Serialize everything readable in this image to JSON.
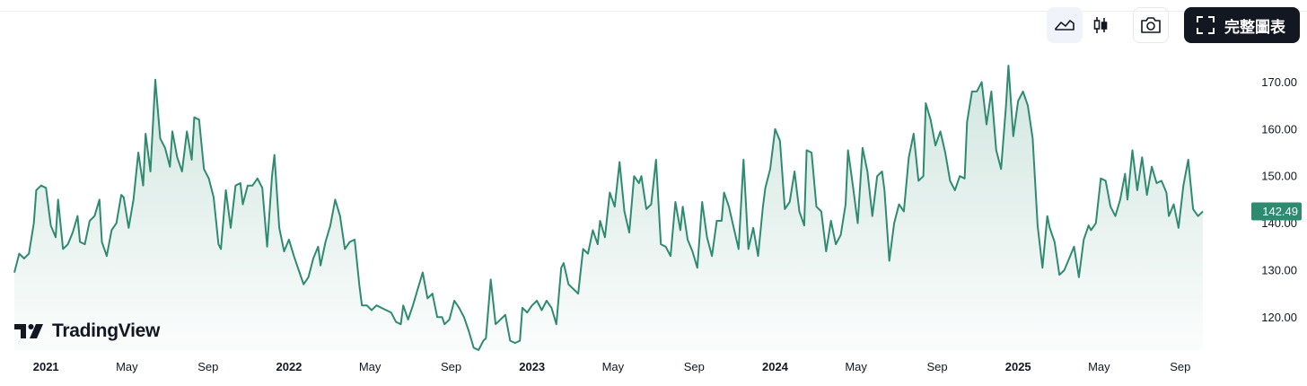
{
  "toolbar": {
    "line_icon": "line-chart-icon",
    "candle_icon": "candlestick-icon",
    "camera_icon": "camera-icon",
    "fullscreen_icon": "fullscreen-icon",
    "fullscreen_label": "完整圖表"
  },
  "brand": {
    "name": "TradingView",
    "logo_icon": "tradingview-logo-icon"
  },
  "colors": {
    "line": "#2e8b6f",
    "fill": "#2e8b6f",
    "label_bg": "#2e8b6f"
  },
  "chart_data": {
    "type": "area",
    "x_ticks": [
      {
        "label": "2021",
        "year": true,
        "x": 2021.0
      },
      {
        "label": "May",
        "year": false,
        "x": 2021.333
      },
      {
        "label": "Sep",
        "year": false,
        "x": 2021.667
      },
      {
        "label": "2022",
        "year": true,
        "x": 2022.0
      },
      {
        "label": "May",
        "year": false,
        "x": 2022.333
      },
      {
        "label": "Sep",
        "year": false,
        "x": 2022.667
      },
      {
        "label": "2023",
        "year": true,
        "x": 2023.0
      },
      {
        "label": "May",
        "year": false,
        "x": 2023.333
      },
      {
        "label": "Sep",
        "year": false,
        "x": 2023.667
      },
      {
        "label": "2024",
        "year": true,
        "x": 2024.0
      },
      {
        "label": "May",
        "year": false,
        "x": 2024.333
      },
      {
        "label": "Sep",
        "year": false,
        "x": 2024.667
      },
      {
        "label": "2025",
        "year": true,
        "x": 2025.0
      },
      {
        "label": "May",
        "year": false,
        "x": 2025.333
      },
      {
        "label": "Sep",
        "year": false,
        "x": 2025.667
      }
    ],
    "y_ticks": [
      "120.00",
      "130.00",
      "140.00",
      "150.00",
      "160.00",
      "170.00"
    ],
    "ylim": [
      113,
      176
    ],
    "xlim": [
      2020.87,
      2025.93
    ],
    "last_price": 142.49,
    "last_price_label": "142.49",
    "points": [
      [
        2020.87,
        129.5
      ],
      [
        2020.89,
        133.5
      ],
      [
        2020.91,
        132.5
      ],
      [
        2020.93,
        133.5
      ],
      [
        2020.95,
        140.0
      ],
      [
        2020.96,
        147.0
      ],
      [
        2020.98,
        148.0
      ],
      [
        2021.0,
        147.5
      ],
      [
        2021.02,
        139.5
      ],
      [
        2021.04,
        137.0
      ],
      [
        2021.05,
        145.0
      ],
      [
        2021.07,
        134.5
      ],
      [
        2021.09,
        135.5
      ],
      [
        2021.11,
        138.0
      ],
      [
        2021.13,
        141.5
      ],
      [
        2021.14,
        136.0
      ],
      [
        2021.16,
        135.5
      ],
      [
        2021.18,
        140.5
      ],
      [
        2021.2,
        141.5
      ],
      [
        2021.22,
        145.0
      ],
      [
        2021.23,
        136.0
      ],
      [
        2021.25,
        133.0
      ],
      [
        2021.27,
        138.5
      ],
      [
        2021.29,
        140.0
      ],
      [
        2021.31,
        146.0
      ],
      [
        2021.32,
        145.5
      ],
      [
        2021.34,
        139.0
      ],
      [
        2021.36,
        145.0
      ],
      [
        2021.38,
        155.0
      ],
      [
        2021.4,
        148.0
      ],
      [
        2021.41,
        159.0
      ],
      [
        2021.43,
        151.0
      ],
      [
        2021.45,
        170.5
      ],
      [
        2021.47,
        158.0
      ],
      [
        2021.49,
        156.0
      ],
      [
        2021.51,
        152.0
      ],
      [
        2021.52,
        159.5
      ],
      [
        2021.54,
        154.0
      ],
      [
        2021.56,
        151.0
      ],
      [
        2021.58,
        159.5
      ],
      [
        2021.6,
        153.5
      ],
      [
        2021.61,
        162.5
      ],
      [
        2021.63,
        162.0
      ],
      [
        2021.65,
        151.5
      ],
      [
        2021.67,
        149.5
      ],
      [
        2021.69,
        145.5
      ],
      [
        2021.71,
        135.5
      ],
      [
        2021.72,
        134.5
      ],
      [
        2021.74,
        147.0
      ],
      [
        2021.76,
        139.0
      ],
      [
        2021.78,
        148.0
      ],
      [
        2021.8,
        148.5
      ],
      [
        2021.81,
        144.0
      ],
      [
        2021.83,
        148.0
      ],
      [
        2021.85,
        148.0
      ],
      [
        2021.87,
        149.5
      ],
      [
        2021.89,
        147.5
      ],
      [
        2021.91,
        135.0
      ],
      [
        2021.93,
        150.0
      ],
      [
        2021.94,
        154.5
      ],
      [
        2021.96,
        139.0
      ],
      [
        2021.98,
        134.0
      ],
      [
        2022.0,
        136.5
      ],
      [
        2022.02,
        133.0
      ],
      [
        2022.04,
        130.0
      ],
      [
        2022.06,
        127.0
      ],
      [
        2022.08,
        128.5
      ],
      [
        2022.1,
        132.5
      ],
      [
        2022.12,
        135.0
      ],
      [
        2022.13,
        131.0
      ],
      [
        2022.15,
        136.0
      ],
      [
        2022.17,
        139.5
      ],
      [
        2022.19,
        145.0
      ],
      [
        2022.21,
        141.5
      ],
      [
        2022.23,
        134.5
      ],
      [
        2022.25,
        136.0
      ],
      [
        2022.27,
        136.5
      ],
      [
        2022.29,
        126.5
      ],
      [
        2022.3,
        122.5
      ],
      [
        2022.32,
        122.5
      ],
      [
        2022.34,
        121.5
      ],
      [
        2022.36,
        122.5
      ],
      [
        2022.38,
        122.0
      ],
      [
        2022.4,
        121.5
      ],
      [
        2022.42,
        121.0
      ],
      [
        2022.44,
        119.0
      ],
      [
        2022.46,
        118.5
      ],
      [
        2022.47,
        122.5
      ],
      [
        2022.49,
        119.5
      ],
      [
        2022.51,
        122.5
      ],
      [
        2022.53,
        126.0
      ],
      [
        2022.55,
        129.5
      ],
      [
        2022.57,
        124.0
      ],
      [
        2022.59,
        125.0
      ],
      [
        2022.61,
        120.0
      ],
      [
        2022.63,
        120.0
      ],
      [
        2022.64,
        118.5
      ],
      [
        2022.66,
        119.5
      ],
      [
        2022.68,
        123.5
      ],
      [
        2022.7,
        122.0
      ],
      [
        2022.72,
        120.0
      ],
      [
        2022.74,
        117.0
      ],
      [
        2022.76,
        113.5
      ],
      [
        2022.78,
        113.0
      ],
      [
        2022.8,
        115.0
      ],
      [
        2022.81,
        115.5
      ],
      [
        2022.83,
        128.0
      ],
      [
        2022.85,
        118.5
      ],
      [
        2022.87,
        119.5
      ],
      [
        2022.89,
        120.5
      ],
      [
        2022.91,
        115.0
      ],
      [
        2022.93,
        114.5
      ],
      [
        2022.95,
        115.0
      ],
      [
        2022.96,
        122.0
      ],
      [
        2022.98,
        121.0
      ],
      [
        2023.0,
        122.5
      ],
      [
        2023.02,
        123.5
      ],
      [
        2023.04,
        121.5
      ],
      [
        2023.06,
        123.5
      ],
      [
        2023.08,
        122.0
      ],
      [
        2023.1,
        118.5
      ],
      [
        2023.12,
        130.5
      ],
      [
        2023.13,
        131.5
      ],
      [
        2023.15,
        127.0
      ],
      [
        2023.17,
        126.0
      ],
      [
        2023.19,
        125.0
      ],
      [
        2023.21,
        134.5
      ],
      [
        2023.23,
        133.5
      ],
      [
        2023.25,
        138.5
      ],
      [
        2023.27,
        135.5
      ],
      [
        2023.28,
        140.5
      ],
      [
        2023.3,
        137.0
      ],
      [
        2023.32,
        146.5
      ],
      [
        2023.34,
        143.5
      ],
      [
        2023.36,
        153.0
      ],
      [
        2023.38,
        142.5
      ],
      [
        2023.4,
        138.0
      ],
      [
        2023.42,
        150.0
      ],
      [
        2023.44,
        148.5
      ],
      [
        2023.45,
        150.0
      ],
      [
        2023.47,
        143.0
      ],
      [
        2023.49,
        144.0
      ],
      [
        2023.51,
        153.5
      ],
      [
        2023.53,
        135.5
      ],
      [
        2023.55,
        135.0
      ],
      [
        2023.57,
        133.0
      ],
      [
        2023.59,
        144.5
      ],
      [
        2023.61,
        138.5
      ],
      [
        2023.62,
        143.5
      ],
      [
        2023.64,
        136.5
      ],
      [
        2023.66,
        134.0
      ],
      [
        2023.68,
        130.5
      ],
      [
        2023.7,
        144.5
      ],
      [
        2023.72,
        137.0
      ],
      [
        2023.74,
        133.0
      ],
      [
        2023.76,
        140.5
      ],
      [
        2023.78,
        140.5
      ],
      [
        2023.79,
        146.5
      ],
      [
        2023.81,
        143.5
      ],
      [
        2023.83,
        139.0
      ],
      [
        2023.85,
        134.5
      ],
      [
        2023.87,
        153.5
      ],
      [
        2023.89,
        134.5
      ],
      [
        2023.91,
        139.0
      ],
      [
        2023.93,
        133.0
      ],
      [
        2023.95,
        143.5
      ],
      [
        2023.96,
        147.5
      ],
      [
        2023.98,
        151.5
      ],
      [
        2024.0,
        160.0
      ],
      [
        2024.02,
        157.5
      ],
      [
        2024.04,
        143.0
      ],
      [
        2024.06,
        144.5
      ],
      [
        2024.08,
        151.0
      ],
      [
        2024.1,
        142.5
      ],
      [
        2024.12,
        139.5
      ],
      [
        2024.13,
        155.5
      ],
      [
        2024.15,
        155.0
      ],
      [
        2024.17,
        143.5
      ],
      [
        2024.19,
        142.5
      ],
      [
        2024.21,
        134.0
      ],
      [
        2024.23,
        140.5
      ],
      [
        2024.25,
        135.5
      ],
      [
        2024.27,
        137.5
      ],
      [
        2024.29,
        144.0
      ],
      [
        2024.3,
        155.5
      ],
      [
        2024.32,
        148.0
      ],
      [
        2024.34,
        140.0
      ],
      [
        2024.36,
        156.0
      ],
      [
        2024.38,
        151.0
      ],
      [
        2024.4,
        141.5
      ],
      [
        2024.42,
        150.0
      ],
      [
        2024.44,
        151.0
      ],
      [
        2024.45,
        147.0
      ],
      [
        2024.47,
        132.0
      ],
      [
        2024.49,
        140.0
      ],
      [
        2024.51,
        144.0
      ],
      [
        2024.53,
        142.5
      ],
      [
        2024.55,
        154.0
      ],
      [
        2024.57,
        159.0
      ],
      [
        2024.59,
        149.0
      ],
      [
        2024.61,
        150.0
      ],
      [
        2024.62,
        165.5
      ],
      [
        2024.64,
        162.0
      ],
      [
        2024.66,
        156.5
      ],
      [
        2024.68,
        159.5
      ],
      [
        2024.7,
        155.0
      ],
      [
        2024.72,
        149.0
      ],
      [
        2024.74,
        147.0
      ],
      [
        2024.76,
        150.0
      ],
      [
        2024.78,
        149.5
      ],
      [
        2024.79,
        161.5
      ],
      [
        2024.81,
        168.0
      ],
      [
        2024.83,
        168.0
      ],
      [
        2024.85,
        170.0
      ],
      [
        2024.87,
        161.0
      ],
      [
        2024.89,
        168.0
      ],
      [
        2024.91,
        155.5
      ],
      [
        2024.93,
        151.5
      ],
      [
        2024.95,
        165.0
      ],
      [
        2024.96,
        173.5
      ],
      [
        2024.98,
        158.5
      ],
      [
        2025.0,
        166.0
      ],
      [
        2025.02,
        168.0
      ],
      [
        2025.04,
        165.0
      ],
      [
        2025.06,
        158.0
      ],
      [
        2025.08,
        139.5
      ],
      [
        2025.1,
        130.5
      ],
      [
        2025.12,
        141.5
      ],
      [
        2025.13,
        139.0
      ],
      [
        2025.15,
        136.0
      ],
      [
        2025.17,
        129.0
      ],
      [
        2025.19,
        130.0
      ],
      [
        2025.21,
        132.5
      ],
      [
        2025.23,
        135.0
      ],
      [
        2025.25,
        128.5
      ],
      [
        2025.27,
        136.5
      ],
      [
        2025.29,
        139.5
      ],
      [
        2025.3,
        138.5
      ],
      [
        2025.32,
        140.0
      ],
      [
        2025.34,
        149.5
      ],
      [
        2025.36,
        149.0
      ],
      [
        2025.38,
        143.5
      ],
      [
        2025.4,
        141.5
      ],
      [
        2025.42,
        145.0
      ],
      [
        2025.44,
        150.5
      ],
      [
        2025.45,
        145.0
      ],
      [
        2025.47,
        155.5
      ],
      [
        2025.49,
        147.0
      ],
      [
        2025.51,
        154.0
      ],
      [
        2025.53,
        146.0
      ],
      [
        2025.55,
        152.0
      ],
      [
        2025.57,
        148.5
      ],
      [
        2025.59,
        149.0
      ],
      [
        2025.61,
        146.5
      ],
      [
        2025.62,
        141.5
      ],
      [
        2025.64,
        144.0
      ],
      [
        2025.66,
        139.0
      ],
      [
        2025.68,
        148.0
      ],
      [
        2025.7,
        153.5
      ],
      [
        2025.72,
        143.0
      ],
      [
        2025.74,
        141.5
      ],
      [
        2025.76,
        142.5
      ]
    ]
  }
}
